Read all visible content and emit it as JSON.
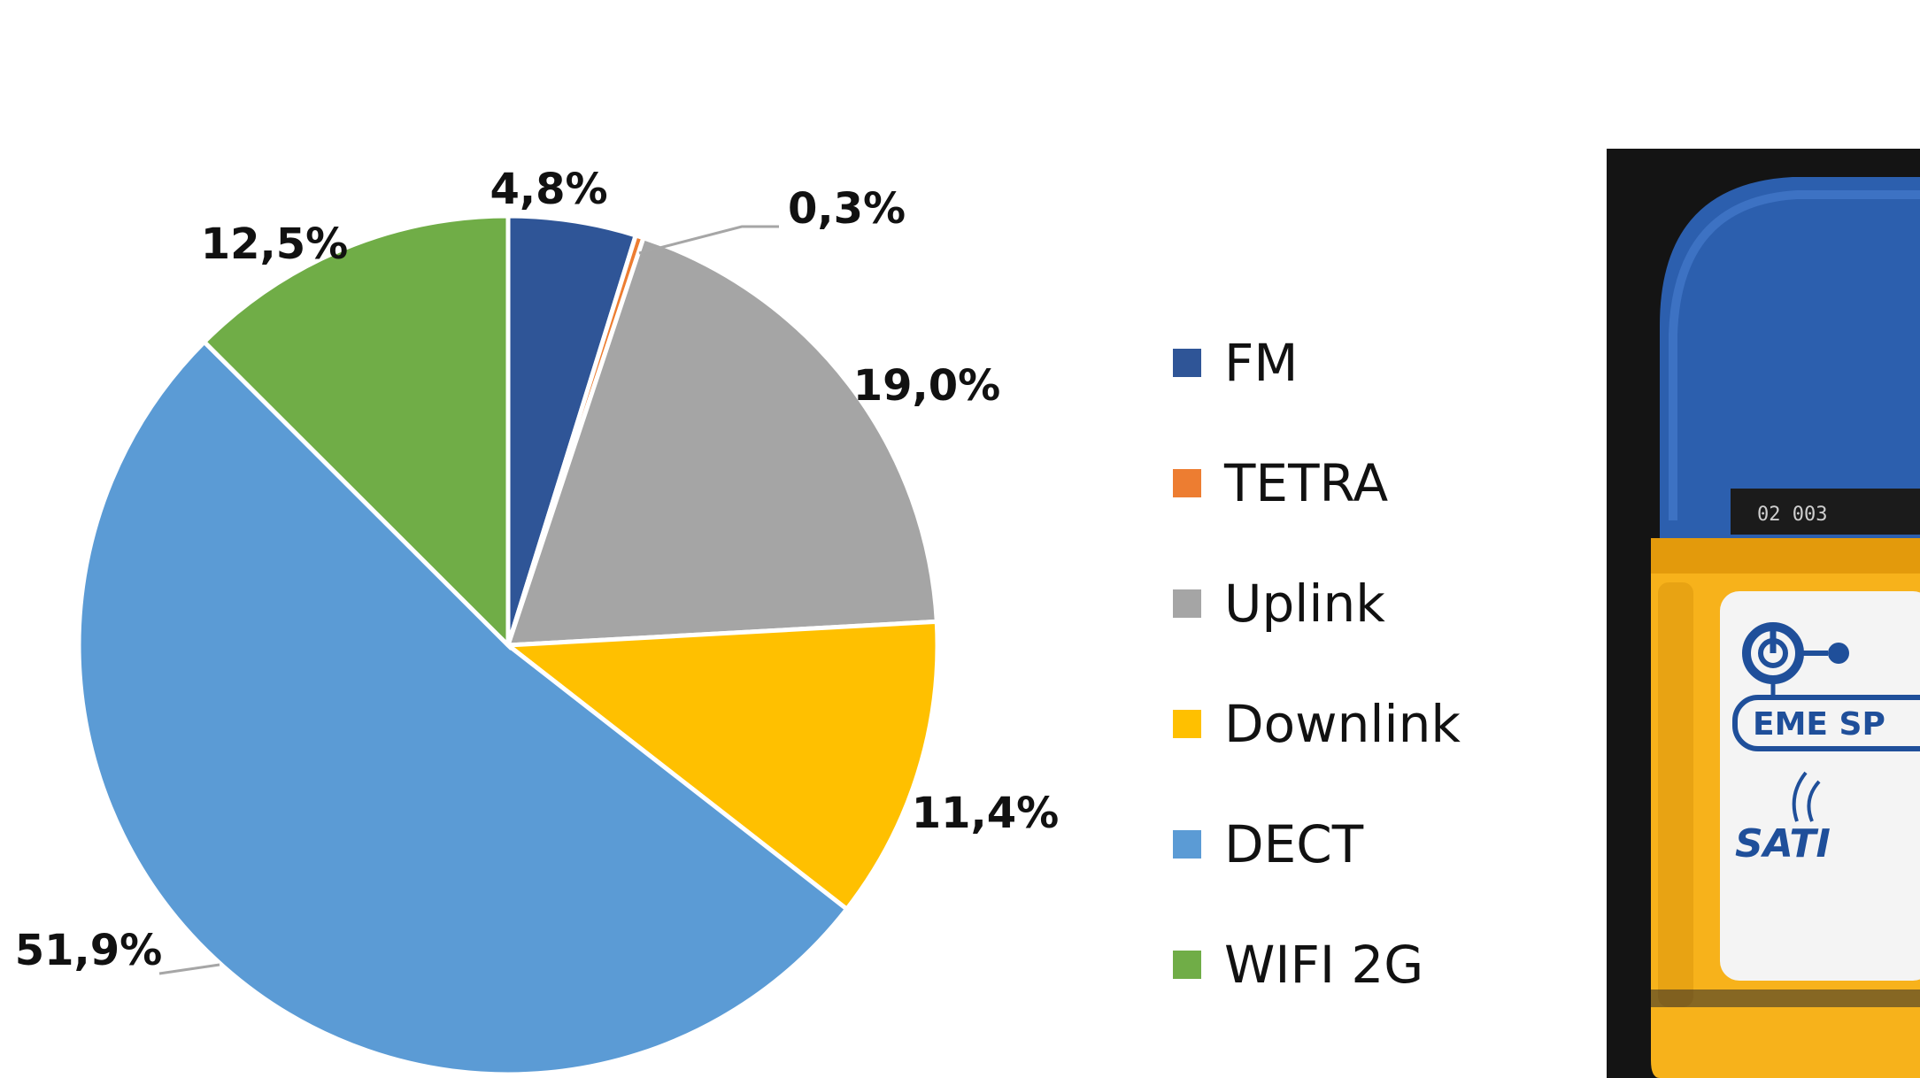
{
  "chart_data": {
    "type": "pie",
    "title": "",
    "categories": [
      "FM",
      "TETRA",
      "Uplink",
      "Downlink",
      "DECT",
      "WIFI 2G"
    ],
    "values": [
      4.8,
      0.3,
      19.0,
      11.4,
      51.9,
      12.5
    ],
    "labels": [
      "4,8%",
      "0,3%",
      "19,0%",
      "11,4%",
      "51,9%",
      "12,5%"
    ],
    "colors": [
      "#2f5597",
      "#ed7d31",
      "#a5a5a5",
      "#ffc000",
      "#5b9bd5",
      "#70ad47"
    ],
    "legend_position": "right",
    "start_angle": "12 o'clock, clockwise"
  },
  "legend": {
    "items": [
      {
        "label": "FM",
        "color": "#2f5597"
      },
      {
        "label": "TETRA",
        "color": "#ed7d31"
      },
      {
        "label": "Uplink",
        "color": "#a5a5a5"
      },
      {
        "label": "Downlink",
        "color": "#ffc000"
      },
      {
        "label": "DECT",
        "color": "#5b9bd5"
      },
      {
        "label": "WIFI 2G",
        "color": "#70ad47"
      }
    ]
  },
  "device": {
    "icon": "power-icon",
    "label_text": "EME SP",
    "brand_text": "SATI",
    "serial_text": "02  003",
    "body_color": "#f7b21b",
    "cap_color": "#2c5fae"
  }
}
